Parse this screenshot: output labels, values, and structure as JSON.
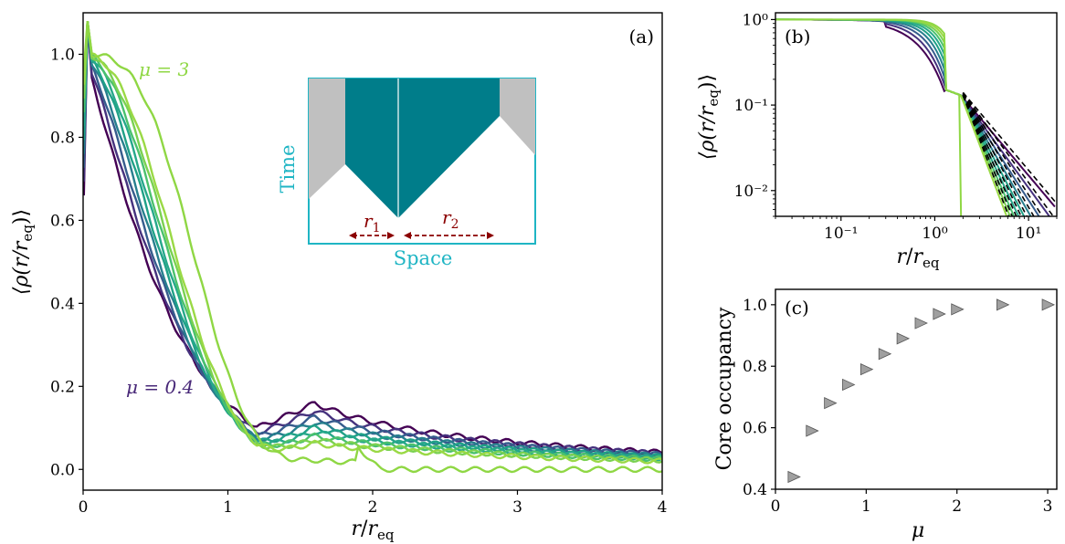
{
  "colors": {
    "palette": [
      "#440154",
      "#46327e",
      "#365c8d",
      "#277f8e",
      "#1fa187",
      "#26a88a",
      "#4ac16d",
      "#7ad151",
      "#9ad945",
      "#8fd744"
    ],
    "muHigh": "#8fd744",
    "muLow": "#482878",
    "insetBorder": "#1fb5c4",
    "insetFill": "#007d8a",
    "insetGray": "#c0c0c0",
    "arrow": "#8b0000",
    "marker": "#a0a0a0"
  },
  "panels": {
    "a": {
      "tag": "(a)",
      "xlabel_base": "r",
      "xlabel_slash": "/",
      "xlabel_r": "r",
      "xlabel_sub": "eq",
      "ylabel": "⟨ρ(r/r",
      "ylabel_sub": "eq",
      "ylabel_end": ")⟩",
      "anno_high": "μ = 3",
      "anno_low": "μ = 0.4",
      "inset": {
        "time": "Time",
        "space": "Space",
        "r1": "r",
        "r1_sub": "1",
        "r2": "r",
        "r2_sub": "2"
      }
    },
    "b": {
      "tag": "(b)",
      "ylabel": "⟨ρ(r/r",
      "ylabel_sub": "eq",
      "ylabel_end": ")⟩",
      "xlabel_base": "r",
      "xlabel_slash": "/",
      "xlabel_r": "r",
      "xlabel_sub": "eq"
    },
    "c": {
      "tag": "(c)",
      "ylabel": "Core occupancy",
      "xlabel": "μ"
    }
  },
  "chart_data": [
    {
      "type": "line",
      "panel": "a",
      "xlim": [
        0,
        4
      ],
      "ylim": [
        -0.05,
        1.1
      ],
      "xticks": [
        "0",
        "1",
        "2",
        "3",
        "4"
      ],
      "yticks": [
        "0.0",
        "0.2",
        "0.4",
        "0.6",
        "0.8",
        "1.0"
      ],
      "series_mu": [
        0.4,
        0.6,
        0.8,
        1.0,
        1.2,
        1.4,
        1.6,
        1.8,
        2.0,
        3.0
      ],
      "crossing_point": {
        "x": 1.6,
        "y": 0.16
      },
      "annotations": [
        "μ = 3",
        "μ = 0.4"
      ]
    },
    {
      "type": "line",
      "panel": "b",
      "xscale": "log",
      "yscale": "log",
      "xlim": [
        0.02,
        20
      ],
      "ylim": [
        0.005,
        1.2
      ],
      "xticks": [
        "10⁻¹",
        "10⁰",
        "10¹"
      ],
      "yticks": [
        "10⁻²",
        "10⁻¹",
        "10⁰"
      ],
      "fit_lines": "dashed black power-law tails"
    },
    {
      "type": "scatter",
      "panel": "c",
      "xlim": [
        0,
        3.1
      ],
      "ylim": [
        0.4,
        1.05
      ],
      "xticks": [
        "0",
        "1",
        "2",
        "3"
      ],
      "yticks": [
        "0.4",
        "0.6",
        "0.8",
        "1.0"
      ],
      "marker": "right-pointing triangle",
      "x": [
        0.2,
        0.4,
        0.6,
        0.8,
        1.0,
        1.2,
        1.4,
        1.6,
        1.8,
        2.0,
        2.5,
        3.0
      ],
      "y": [
        0.44,
        0.59,
        0.68,
        0.74,
        0.79,
        0.84,
        0.89,
        0.94,
        0.97,
        0.985,
        1.0,
        1.0
      ]
    }
  ]
}
